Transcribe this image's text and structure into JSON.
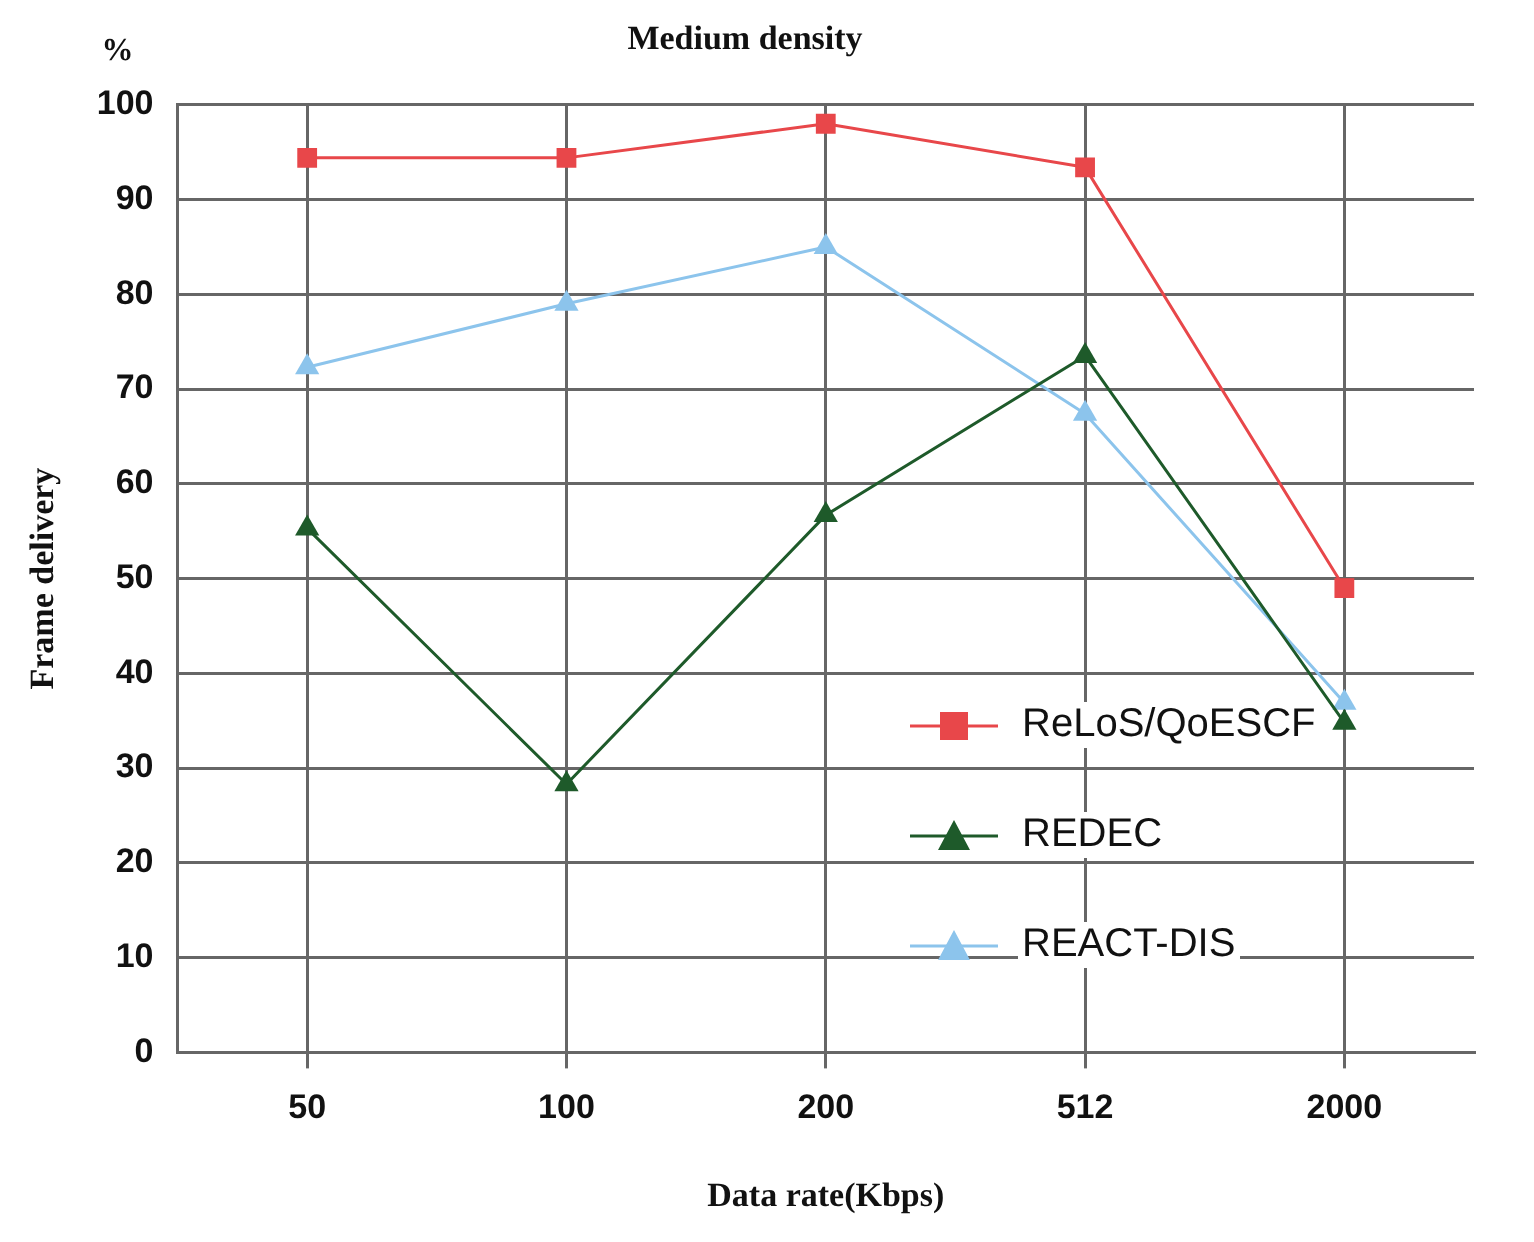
{
  "chart_data": {
    "type": "line",
    "title": "Medium density",
    "xlabel": "Data rate(Kbps)",
    "ylabel": "Frame delivery",
    "annotations": [
      "%"
    ],
    "categories": [
      "50",
      "100",
      "200",
      "512",
      "2000"
    ],
    "series": [
      {
        "name": "ReLoS/QoESCF",
        "color": "#e8474a",
        "marker": "square",
        "values": [
          94.4,
          94.4,
          98,
          93.4,
          49
        ]
      },
      {
        "name": "REDEC",
        "color": "#1e5a2a",
        "marker": "triangle",
        "values": [
          55.3,
          28.3,
          56.7,
          73.5,
          34.8
        ]
      },
      {
        "name": "REACT-DIS",
        "color": "#8cc4ec",
        "marker": "triangle",
        "values": [
          72.3,
          79,
          85,
          67.4,
          36.9
        ]
      }
    ],
    "ylim": [
      0,
      100
    ],
    "yticks": [
      0,
      10,
      20,
      30,
      40,
      50,
      60,
      70,
      80,
      90,
      100
    ],
    "grid": true,
    "legend": "right",
    "line_style": "solid"
  }
}
